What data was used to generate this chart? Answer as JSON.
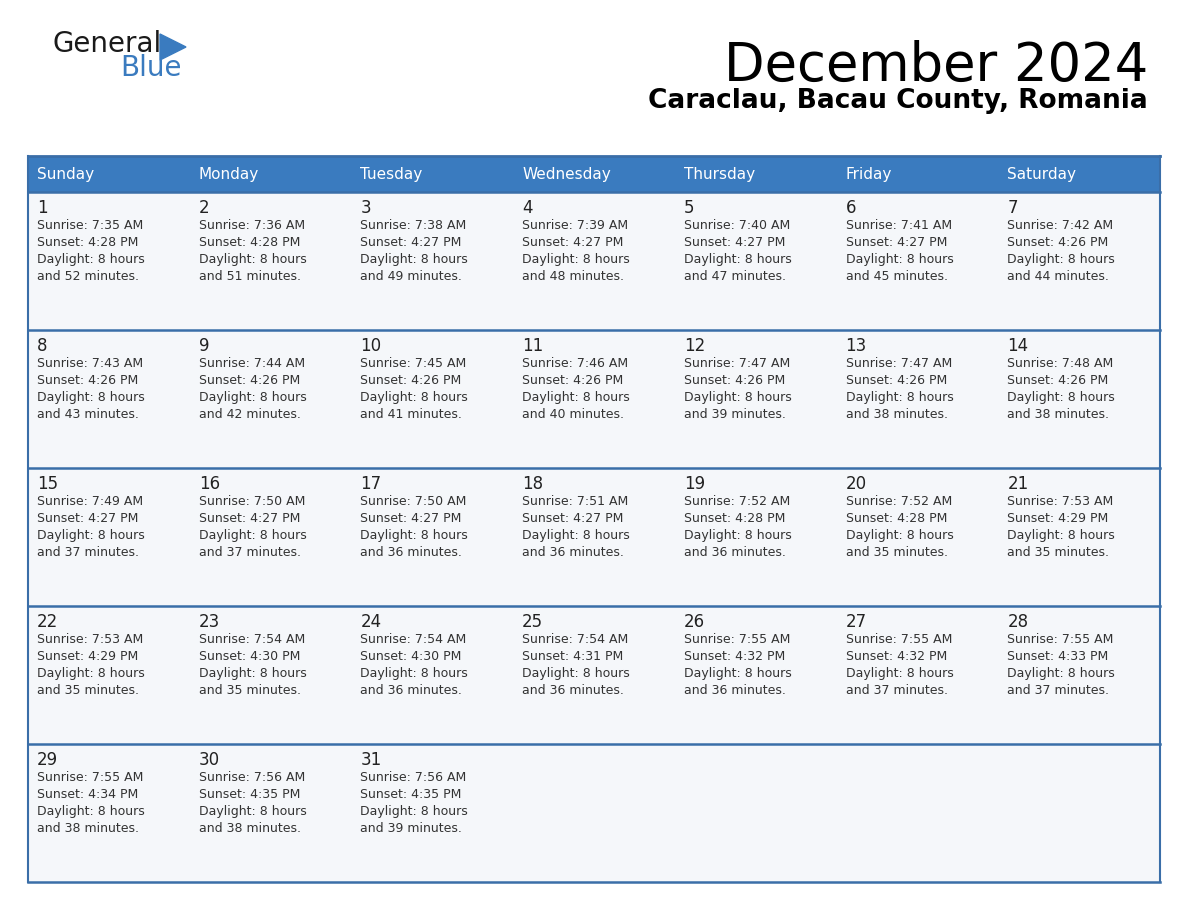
{
  "title": "December 2024",
  "subtitle": "Caraclau, Bacau County, Romania",
  "header_bg_color": "#3a7bbf",
  "header_text_color": "#ffffff",
  "cell_bg_color": "#f5f7fa",
  "cell_text_color": "#333333",
  "day_number_color": "#222222",
  "grid_line_color": "#3a6ea8",
  "days_of_week": [
    "Sunday",
    "Monday",
    "Tuesday",
    "Wednesday",
    "Thursday",
    "Friday",
    "Saturday"
  ],
  "weeks": [
    [
      {
        "day": 1,
        "sunrise": "7:35 AM",
        "sunset": "4:28 PM",
        "daylight": "8 hours and 52 minutes"
      },
      {
        "day": 2,
        "sunrise": "7:36 AM",
        "sunset": "4:28 PM",
        "daylight": "8 hours and 51 minutes"
      },
      {
        "day": 3,
        "sunrise": "7:38 AM",
        "sunset": "4:27 PM",
        "daylight": "8 hours and 49 minutes"
      },
      {
        "day": 4,
        "sunrise": "7:39 AM",
        "sunset": "4:27 PM",
        "daylight": "8 hours and 48 minutes"
      },
      {
        "day": 5,
        "sunrise": "7:40 AM",
        "sunset": "4:27 PM",
        "daylight": "8 hours and 47 minutes"
      },
      {
        "day": 6,
        "sunrise": "7:41 AM",
        "sunset": "4:27 PM",
        "daylight": "8 hours and 45 minutes"
      },
      {
        "day": 7,
        "sunrise": "7:42 AM",
        "sunset": "4:26 PM",
        "daylight": "8 hours and 44 minutes"
      }
    ],
    [
      {
        "day": 8,
        "sunrise": "7:43 AM",
        "sunset": "4:26 PM",
        "daylight": "8 hours and 43 minutes"
      },
      {
        "day": 9,
        "sunrise": "7:44 AM",
        "sunset": "4:26 PM",
        "daylight": "8 hours and 42 minutes"
      },
      {
        "day": 10,
        "sunrise": "7:45 AM",
        "sunset": "4:26 PM",
        "daylight": "8 hours and 41 minutes"
      },
      {
        "day": 11,
        "sunrise": "7:46 AM",
        "sunset": "4:26 PM",
        "daylight": "8 hours and 40 minutes"
      },
      {
        "day": 12,
        "sunrise": "7:47 AM",
        "sunset": "4:26 PM",
        "daylight": "8 hours and 39 minutes"
      },
      {
        "day": 13,
        "sunrise": "7:47 AM",
        "sunset": "4:26 PM",
        "daylight": "8 hours and 38 minutes"
      },
      {
        "day": 14,
        "sunrise": "7:48 AM",
        "sunset": "4:26 PM",
        "daylight": "8 hours and 38 minutes"
      }
    ],
    [
      {
        "day": 15,
        "sunrise": "7:49 AM",
        "sunset": "4:27 PM",
        "daylight": "8 hours and 37 minutes"
      },
      {
        "day": 16,
        "sunrise": "7:50 AM",
        "sunset": "4:27 PM",
        "daylight": "8 hours and 37 minutes"
      },
      {
        "day": 17,
        "sunrise": "7:50 AM",
        "sunset": "4:27 PM",
        "daylight": "8 hours and 36 minutes"
      },
      {
        "day": 18,
        "sunrise": "7:51 AM",
        "sunset": "4:27 PM",
        "daylight": "8 hours and 36 minutes"
      },
      {
        "day": 19,
        "sunrise": "7:52 AM",
        "sunset": "4:28 PM",
        "daylight": "8 hours and 36 minutes"
      },
      {
        "day": 20,
        "sunrise": "7:52 AM",
        "sunset": "4:28 PM",
        "daylight": "8 hours and 35 minutes"
      },
      {
        "day": 21,
        "sunrise": "7:53 AM",
        "sunset": "4:29 PM",
        "daylight": "8 hours and 35 minutes"
      }
    ],
    [
      {
        "day": 22,
        "sunrise": "7:53 AM",
        "sunset": "4:29 PM",
        "daylight": "8 hours and 35 minutes"
      },
      {
        "day": 23,
        "sunrise": "7:54 AM",
        "sunset": "4:30 PM",
        "daylight": "8 hours and 35 minutes"
      },
      {
        "day": 24,
        "sunrise": "7:54 AM",
        "sunset": "4:30 PM",
        "daylight": "8 hours and 36 minutes"
      },
      {
        "day": 25,
        "sunrise": "7:54 AM",
        "sunset": "4:31 PM",
        "daylight": "8 hours and 36 minutes"
      },
      {
        "day": 26,
        "sunrise": "7:55 AM",
        "sunset": "4:32 PM",
        "daylight": "8 hours and 36 minutes"
      },
      {
        "day": 27,
        "sunrise": "7:55 AM",
        "sunset": "4:32 PM",
        "daylight": "8 hours and 37 minutes"
      },
      {
        "day": 28,
        "sunrise": "7:55 AM",
        "sunset": "4:33 PM",
        "daylight": "8 hours and 37 minutes"
      }
    ],
    [
      {
        "day": 29,
        "sunrise": "7:55 AM",
        "sunset": "4:34 PM",
        "daylight": "8 hours and 38 minutes"
      },
      {
        "day": 30,
        "sunrise": "7:56 AM",
        "sunset": "4:35 PM",
        "daylight": "8 hours and 38 minutes"
      },
      {
        "day": 31,
        "sunrise": "7:56 AM",
        "sunset": "4:35 PM",
        "daylight": "8 hours and 39 minutes"
      },
      null,
      null,
      null,
      null
    ]
  ]
}
